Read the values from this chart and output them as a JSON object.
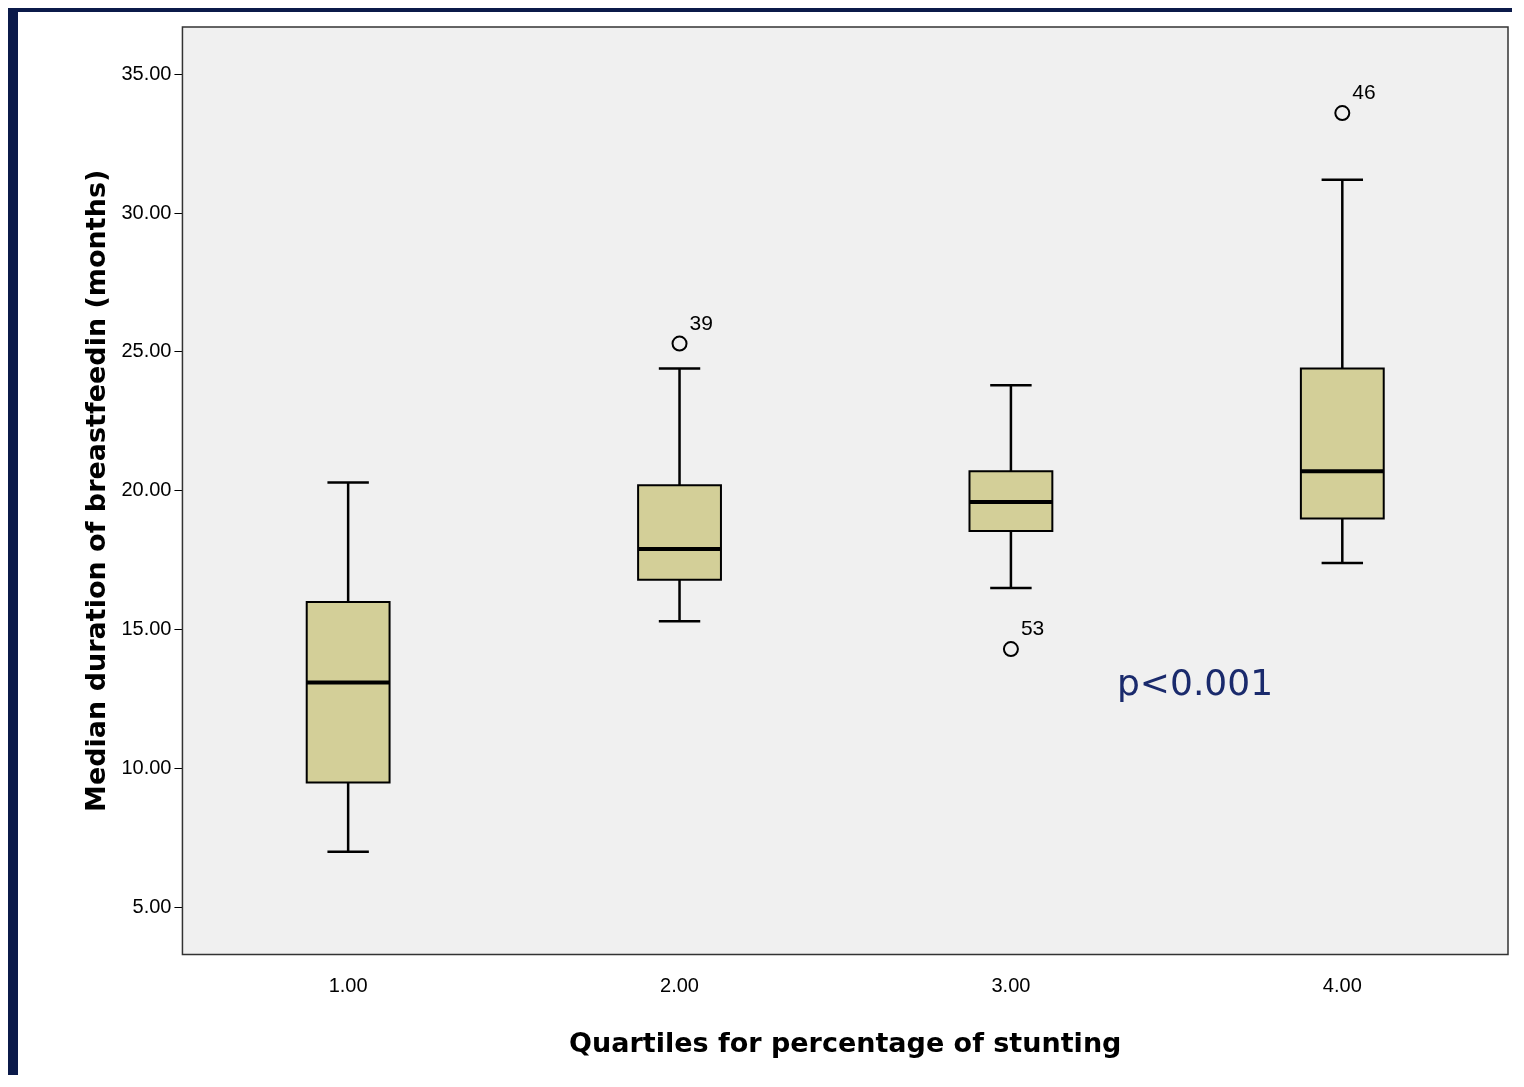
{
  "chart_data": {
    "type": "box",
    "xlabel": "Quartiles for percentage of stunting",
    "ylabel": "Median duration of breastfeedin (months)",
    "categories": [
      "1.00",
      "2.00",
      "3.00",
      "4.00"
    ],
    "color": "#d3cf98",
    "boxes": [
      {
        "low": 7.0,
        "q1": 9.5,
        "median": 13.1,
        "q3": 16.0,
        "high": 20.3
      },
      {
        "low": 15.3,
        "q1": 16.8,
        "median": 17.9,
        "q3": 20.2,
        "high": 24.4,
        "outliers": [
          25.3
        ]
      },
      {
        "low": 16.5,
        "q1": 18.55,
        "median": 19.6,
        "q3": 20.7,
        "high": 23.8,
        "outliers": [
          14.3
        ]
      },
      {
        "low": 17.4,
        "q1": 19.0,
        "median": 20.7,
        "q3": 24.4,
        "high": 31.2,
        "outliers": [
          33.6
        ]
      }
    ],
    "ylim": [
      3.3,
      36.7
    ],
    "yticks": [
      {
        "value": 5,
        "label": "5.00"
      },
      {
        "value": 10,
        "label": "10.00"
      },
      {
        "value": 15,
        "label": "15.00"
      },
      {
        "value": 20,
        "label": "20.00"
      },
      {
        "value": 25,
        "label": "25.00"
      },
      {
        "value": 30,
        "label": "30.00"
      },
      {
        "value": 35,
        "label": "35.00"
      }
    ],
    "annotations": [
      "39",
      "53",
      "46",
      "p<0.001"
    ]
  }
}
